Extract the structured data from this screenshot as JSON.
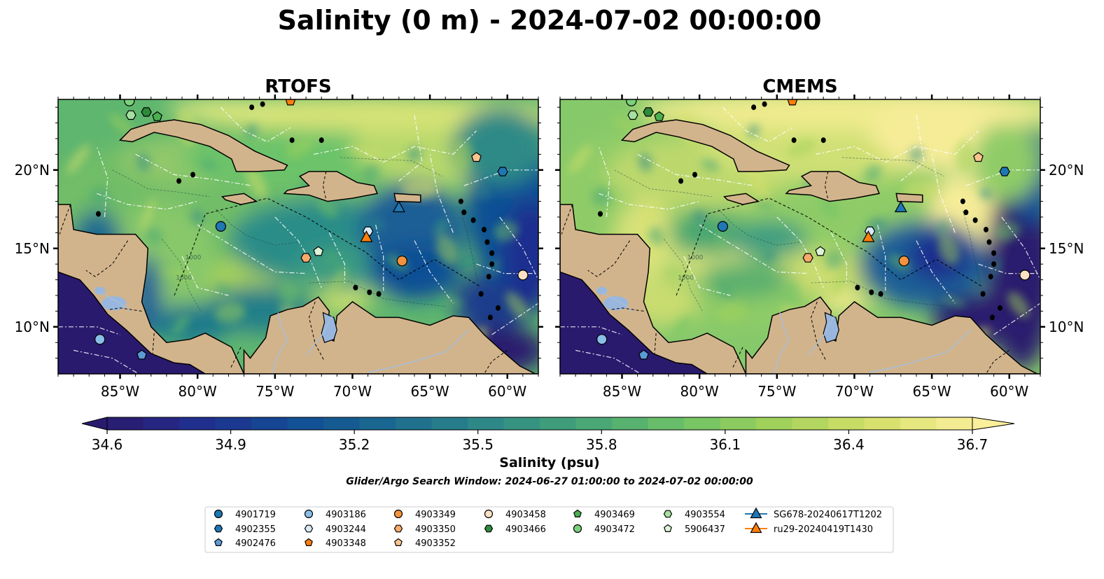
{
  "title": "Salinity (0 m) - 2024-07-02 00:00:00",
  "panels": [
    {
      "title": "RTOFS",
      "variant": "rtofs"
    },
    {
      "title": "CMEMS",
      "variant": "cmems"
    }
  ],
  "map": {
    "lon_range": [
      -89,
      -58
    ],
    "lat_range": [
      7,
      24.5
    ],
    "lon_ticks": [
      {
        "value": -85,
        "label": "85°W"
      },
      {
        "value": -80,
        "label": "80°W"
      },
      {
        "value": -75,
        "label": "75°W"
      },
      {
        "value": -70,
        "label": "70°W"
      },
      {
        "value": -65,
        "label": "65°W"
      },
      {
        "value": -60,
        "label": "60°W"
      }
    ],
    "lat_ticks": [
      {
        "value": 10,
        "label": "10°N"
      },
      {
        "value": 15,
        "label": "15°N"
      },
      {
        "value": 20,
        "label": "20°N"
      }
    ],
    "contour_label": "1000",
    "land_color": "#d2b48c",
    "lake_color": "#99b7de",
    "river_color": "#a7bfd8"
  },
  "colorbar": {
    "min": 34.6,
    "max": 36.7,
    "levels": 24,
    "ticks": [
      "34.6",
      "34.9",
      "35.2",
      "35.5",
      "35.8",
      "36.1",
      "36.4",
      "36.7"
    ],
    "label": "Salinity (psu)",
    "colormap": "haline",
    "colors": [
      "#2a1a6e",
      "#1f2f8f",
      "#114f95",
      "#1b6b8f",
      "#2f8a86",
      "#46a676",
      "#6ec266",
      "#a2d25a",
      "#d6e06a",
      "#fbef9b"
    ]
  },
  "subtitle": "Glider/Argo Search Window: 2024-06-27 01:00:00 to 2024-07-02 00:00:00",
  "markers": [
    {
      "id": "4901719",
      "shape": "circle",
      "color": "#1f77b4",
      "lon": -78.5,
      "lat": 16.4
    },
    {
      "id": "4902355",
      "shape": "hexagon",
      "color": "#1f77b4",
      "lon": -60.3,
      "lat": 19.9
    },
    {
      "id": "4902476",
      "shape": "pentagon",
      "color": "#5b9bd5",
      "lon": -83.6,
      "lat": 8.2
    },
    {
      "id": "4903186",
      "shape": "circle",
      "color": "#89bfe7",
      "lon": -86.3,
      "lat": 9.2
    },
    {
      "id": "4903244",
      "shape": "hexagon",
      "color": "#d6eaf8",
      "lon": -69.0,
      "lat": 16.1
    },
    {
      "id": "4903348",
      "shape": "pentagon",
      "color": "#ff7f0e",
      "lon": -74.0,
      "lat": 24.4
    },
    {
      "id": "4903349",
      "shape": "circle",
      "color": "#f5923e",
      "lon": -66.8,
      "lat": 14.2
    },
    {
      "id": "4903350",
      "shape": "hexagon",
      "color": "#f8aa6b",
      "lon": -73.0,
      "lat": 14.4
    },
    {
      "id": "4903352",
      "shape": "pentagon",
      "color": "#fbc48e",
      "lon": -62.0,
      "lat": 20.8
    },
    {
      "id": "4903458",
      "shape": "circle",
      "color": "#fde0c5",
      "lon": -59.0,
      "lat": 13.3
    },
    {
      "id": "4903466",
      "shape": "hexagon",
      "color": "#2e8b3a",
      "lon": -83.3,
      "lat": 23.7
    },
    {
      "id": "4903469",
      "shape": "pentagon",
      "color": "#4caf50",
      "lon": -82.6,
      "lat": 23.4
    },
    {
      "id": "4903472",
      "shape": "circle",
      "color": "#7cd27a",
      "lon": -84.4,
      "lat": 24.4
    },
    {
      "id": "4903554",
      "shape": "hexagon",
      "color": "#a5e0a0",
      "lon": -84.3,
      "lat": 23.5
    },
    {
      "id": "5906437",
      "shape": "pentagon",
      "color": "#dcf5d7",
      "lon": -72.2,
      "lat": 14.8
    },
    {
      "id": "SG678-20240617T1202",
      "shape": "triangle",
      "color": "#1f77b4",
      "lon": -67.0,
      "lat": 17.6
    },
    {
      "id": "ru29-20240419T1430",
      "shape": "triangle",
      "color": "#ff7f0e",
      "lon": -69.1,
      "lat": 15.7
    }
  ],
  "legend": {
    "columns": [
      [
        "4901719",
        "4902355",
        "4902476"
      ],
      [
        "4903186",
        "4903244",
        "4903348"
      ],
      [
        "4903349",
        "4903350",
        "4903352"
      ],
      [
        "4903458",
        "4903466"
      ],
      [
        "4903469",
        "4903472"
      ],
      [
        "4903554",
        "5906437"
      ],
      [
        "SG678-20240617T1202",
        "ru29-20240419T1430"
      ]
    ]
  }
}
